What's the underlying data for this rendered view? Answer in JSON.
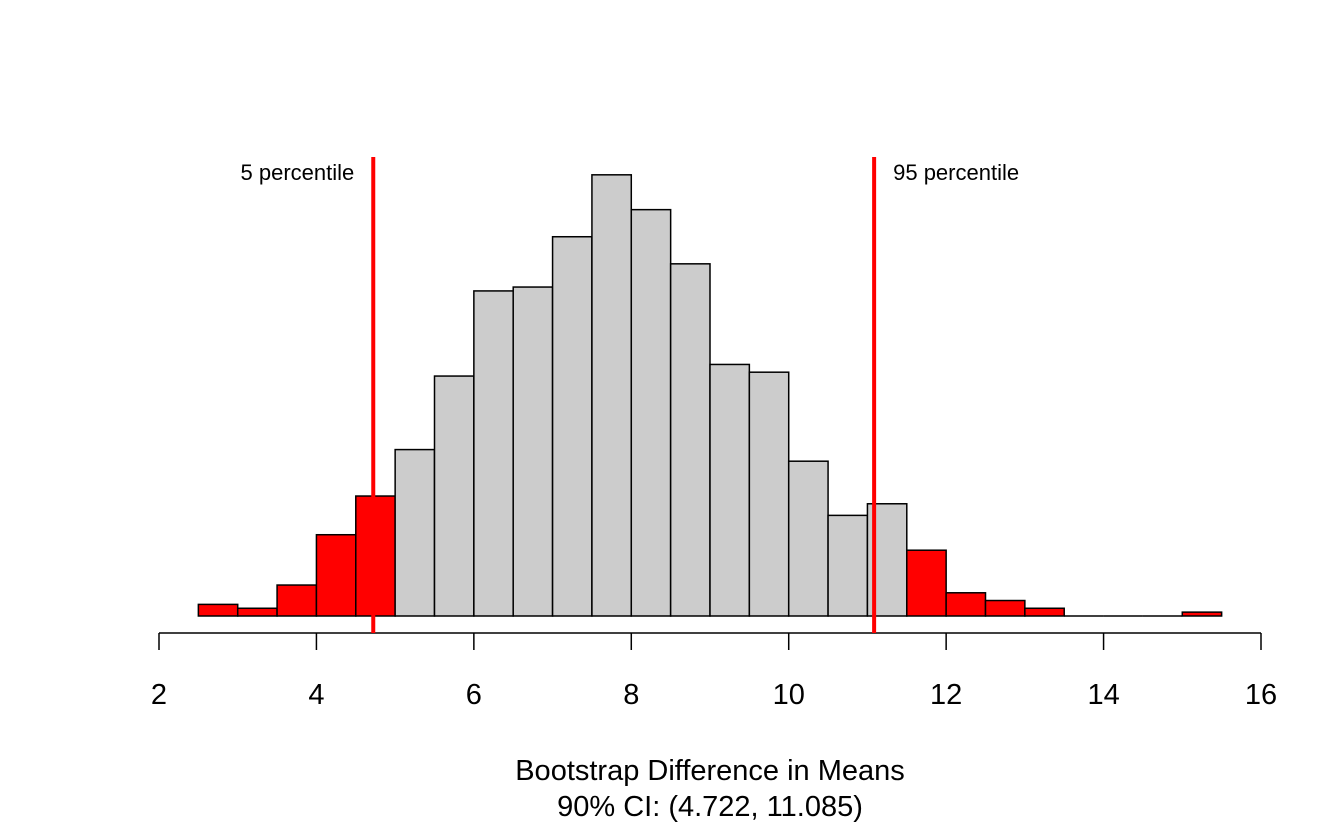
{
  "chart_data": {
    "type": "bar",
    "subtype": "histogram",
    "title": "",
    "xlabel": "Bootstrap Difference in Means",
    "subtitle": "90% CI: (4.722, 11.085)",
    "ylabel": "",
    "xlim": [
      2,
      16
    ],
    "x_ticks": [
      "2",
      "4",
      "6",
      "8",
      "10",
      "12",
      "14",
      "16"
    ],
    "y_axis_shown": false,
    "grid": false,
    "bin_width": 0.5,
    "bin_starts": [
      2.5,
      3,
      3.5,
      4,
      4.5,
      5,
      5.5,
      6,
      6.5,
      7,
      7.5,
      8,
      8.5,
      9,
      9.5,
      10,
      10.5,
      11,
      11.5,
      12,
      12.5,
      13,
      13.5,
      14,
      14.5,
      15
    ],
    "values": [
      3,
      2,
      8,
      21,
      31,
      43,
      62,
      84,
      85,
      98,
      114,
      105,
      91,
      65,
      63,
      40,
      26,
      29,
      17,
      6,
      4,
      2,
      0,
      0,
      0,
      1
    ],
    "bar_colors": [
      "#ff0000",
      "#ff0000",
      "#ff0000",
      "#ff0000",
      "#ff0000",
      "#cccccc",
      "#cccccc",
      "#cccccc",
      "#cccccc",
      "#cccccc",
      "#cccccc",
      "#cccccc",
      "#cccccc",
      "#cccccc",
      "#cccccc",
      "#cccccc",
      "#cccccc",
      "#cccccc",
      "#ff0000",
      "#ff0000",
      "#ff0000",
      "#ff0000",
      "#ff0000",
      "#ff0000",
      "#ff0000",
      "#ff0000"
    ],
    "reference_lines": [
      {
        "x": 4.722,
        "label": "5 percentile",
        "color": "#ff0000"
      },
      {
        "x": 11.085,
        "label": "95 percentile",
        "color": "#ff0000"
      }
    ]
  }
}
